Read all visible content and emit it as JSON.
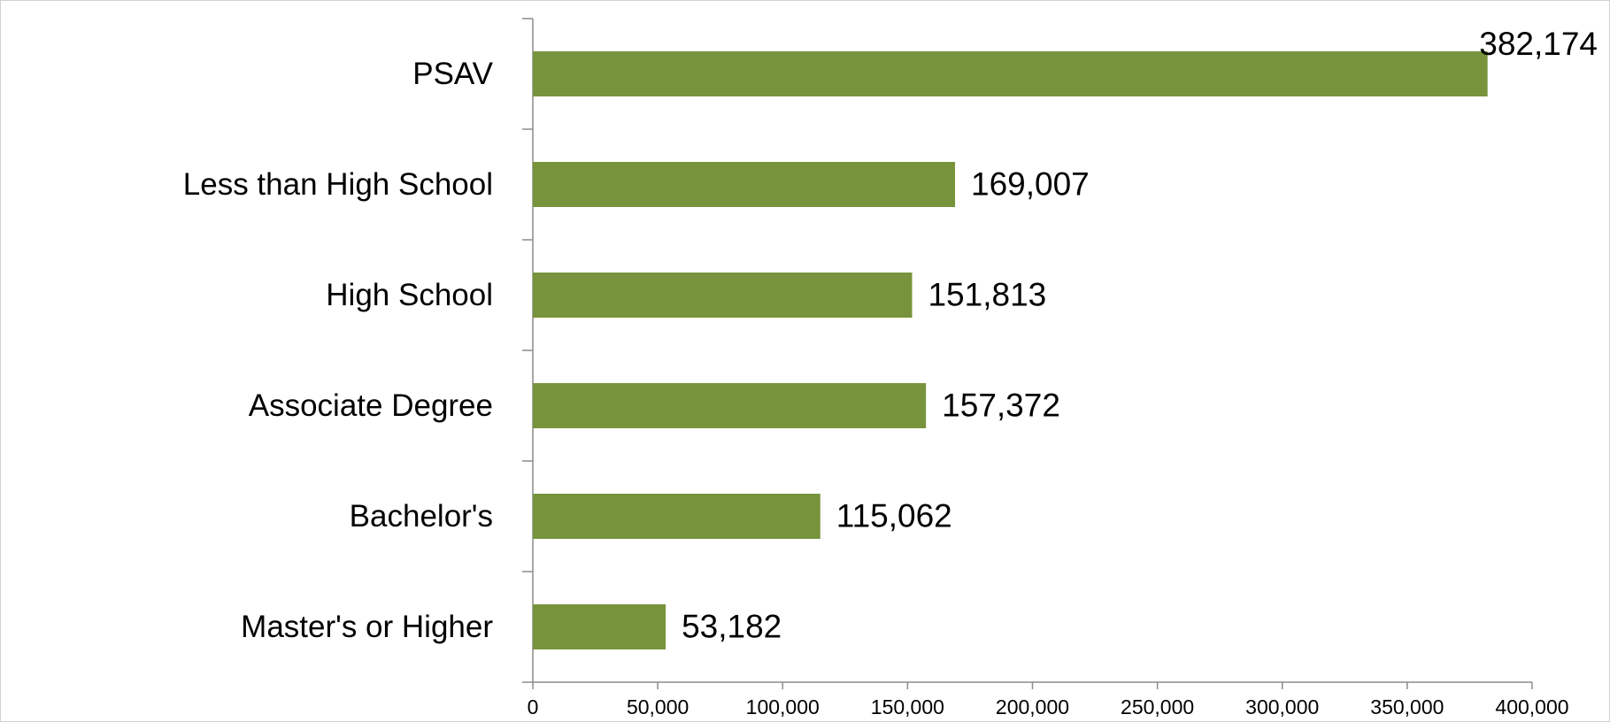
{
  "chart_data": {
    "type": "bar",
    "orientation": "horizontal",
    "categories": [
      "PSAV",
      "Less than High School",
      "High School",
      "Associate Degree",
      "Bachelor's",
      "Master's or Higher"
    ],
    "values": [
      382174,
      169007,
      151813,
      157372,
      115062,
      53182
    ],
    "value_labels": [
      "382,174",
      "169,007",
      "151,813",
      "157,372",
      "115,062",
      "53,182"
    ],
    "color": "#77933c",
    "xlim": [
      0,
      400000
    ],
    "xticks": [
      0,
      {
        "value": 50000,
        "label": "50,000"
      },
      {
        "value": 100000,
        "label": "100,000"
      },
      {
        "value": 150000,
        "label": "150,000"
      },
      {
        "value": 200000,
        "label": "200,000"
      },
      {
        "value": 250000,
        "label": "250,000"
      },
      {
        "value": 300000,
        "label": "300,000"
      },
      {
        "value": 350000,
        "label": "350,000"
      },
      {
        "value": 400000,
        "label": "400,000"
      }
    ],
    "grid": false
  }
}
